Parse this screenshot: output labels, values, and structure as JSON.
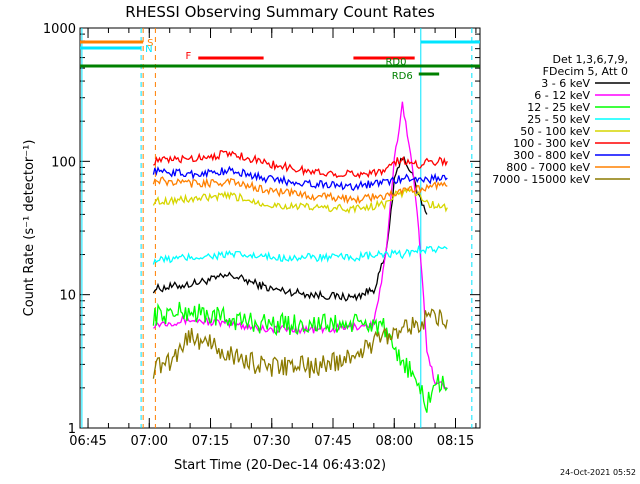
{
  "chart_data": {
    "type": "line",
    "title": "RHESSI Observing Summary Count Rates",
    "xlabel": "Start Time (20-Dec-14 06:43:02)",
    "ylabel": "Count Rate (s⁻¹ detector⁻¹)",
    "yscale": "log",
    "ylim": [
      1,
      1000
    ],
    "yticks": [
      {
        "value": 1,
        "label": "1"
      },
      {
        "value": 10,
        "label": "10"
      },
      {
        "value": 100,
        "label": "100"
      },
      {
        "value": 1000,
        "label": "1000"
      }
    ],
    "xlim": [
      "06:43:02",
      "08:21:00"
    ],
    "xticks": [
      "06:45",
      "07:00",
      "07:15",
      "07:30",
      "07:45",
      "08:00",
      "08:15"
    ],
    "legend_header": [
      "Det 1,3,6,7,9,",
      "FDecim 5, Att 0"
    ],
    "legend_position": "right",
    "timestamp": "24-Oct-2021 05:52",
    "colors": {
      "s1": "#000000",
      "s2": "#ff00ff",
      "s3": "#00ff00",
      "s4": "#00ffff",
      "s5": "#d6d600",
      "s6": "#ff0000",
      "s7": "#0000ff",
      "s8": "#ff8000",
      "s9": "#8b7a00",
      "saa": "#ff8000",
      "night": "#00e5ff",
      "flare": "#ff0000",
      "decim": "#008000"
    },
    "legend": [
      {
        "key": "s1",
        "label": "3 - 6 keV"
      },
      {
        "key": "s2",
        "label": "6 - 12 keV"
      },
      {
        "key": "s3",
        "label": "12 - 25 keV"
      },
      {
        "key": "s4",
        "label": "25 - 50 keV"
      },
      {
        "key": "s5",
        "label": "50 - 100 keV"
      },
      {
        "key": "s6",
        "label": "100 - 300 keV"
      },
      {
        "key": "s7",
        "label": "300 - 800 keV"
      },
      {
        "key": "s8",
        "label": "800 - 7000 keV"
      },
      {
        "key": "s9",
        "label": "7000 - 15000 keV"
      }
    ],
    "series": [
      {
        "key": "s1",
        "x": [
          "07:01",
          "07:10",
          "07:20",
          "07:30",
          "07:40",
          "07:50",
          "07:55",
          "07:58",
          "08:00",
          "08:02",
          "08:04",
          "08:06",
          "08:08"
        ],
        "y": [
          11,
          12,
          14,
          11,
          10,
          9.5,
          11,
          20,
          70,
          110,
          85,
          55,
          40
        ]
      },
      {
        "key": "s2",
        "x": [
          "07:01",
          "07:10",
          "07:20",
          "07:30",
          "07:45",
          "07:55",
          "07:58",
          "08:00",
          "08:02",
          "08:04",
          "08:06",
          "08:08",
          "08:10",
          "08:13"
        ],
        "y": [
          6,
          6.5,
          6,
          5.5,
          5.5,
          6,
          20,
          100,
          270,
          120,
          30,
          4,
          2.2,
          2
        ]
      },
      {
        "key": "s3",
        "x": [
          "07:01",
          "07:10",
          "07:20",
          "07:30",
          "07:40",
          "07:50",
          "07:57",
          "08:00",
          "08:03",
          "08:06",
          "08:08",
          "08:10",
          "08:13"
        ],
        "y": [
          7,
          7.5,
          6.5,
          6,
          6,
          6,
          6,
          3.5,
          3,
          2,
          1.5,
          2.2,
          2
        ]
      },
      {
        "key": "s4",
        "x": [
          "07:01",
          "07:10",
          "07:20",
          "07:30",
          "07:40",
          "07:50",
          "07:58",
          "08:02",
          "08:06",
          "08:08",
          "08:13"
        ],
        "y": [
          18,
          19,
          20,
          19,
          19,
          19,
          20,
          20,
          22,
          22,
          22
        ]
      },
      {
        "key": "s5",
        "x": [
          "07:01",
          "07:10",
          "07:20",
          "07:30",
          "07:40",
          "07:50",
          "07:58",
          "08:00",
          "08:03",
          "08:06",
          "08:08",
          "08:13"
        ],
        "y": [
          50,
          52,
          55,
          47,
          45,
          44,
          48,
          55,
          60,
          58,
          48,
          45
        ]
      },
      {
        "key": "s6",
        "x": [
          "07:01",
          "07:10",
          "07:20",
          "07:30",
          "07:40",
          "07:50",
          "07:58",
          "08:00",
          "08:03",
          "08:06",
          "08:08",
          "08:10",
          "08:13"
        ],
        "y": [
          100,
          105,
          115,
          95,
          83,
          80,
          85,
          100,
          100,
          95,
          100,
          100,
          100
        ]
      },
      {
        "key": "s7",
        "x": [
          "07:01",
          "07:10",
          "07:20",
          "07:30",
          "07:40",
          "07:50",
          "07:58",
          "08:00",
          "08:03",
          "08:06",
          "08:08",
          "08:10",
          "08:13"
        ],
        "y": [
          85,
          80,
          85,
          73,
          68,
          65,
          70,
          72,
          75,
          75,
          72,
          75,
          75
        ]
      },
      {
        "key": "s8",
        "x": [
          "07:01",
          "07:10",
          "07:20",
          "07:30",
          "07:40",
          "07:50",
          "07:58",
          "08:00",
          "08:03",
          "08:06",
          "08:08",
          "08:10",
          "08:13"
        ],
        "y": [
          72,
          68,
          70,
          60,
          55,
          52,
          55,
          58,
          60,
          62,
          65,
          67,
          65
        ]
      },
      {
        "key": "s9",
        "x": [
          "07:01",
          "07:05",
          "07:10",
          "07:20",
          "07:30",
          "07:35",
          "07:40",
          "07:50",
          "07:58",
          "08:03",
          "08:06",
          "08:08",
          "08:10",
          "08:13"
        ],
        "y": [
          2.8,
          3.2,
          5,
          3.5,
          2.8,
          3,
          2.8,
          3.5,
          5,
          6,
          6,
          6.5,
          6.5,
          6.5
        ]
      }
    ],
    "flag_bars": [
      {
        "key": "saa",
        "label": "S",
        "start": "06:43:02",
        "end": "06:58:30",
        "level": "top"
      },
      {
        "key": "night",
        "label": "N",
        "start": "06:43:02",
        "end": "06:58:00",
        "level": "top"
      },
      {
        "key": "night",
        "label": "",
        "start": "08:06:30",
        "end": "08:21:00",
        "level": "top"
      },
      {
        "key": "flare",
        "label": "F",
        "start": "07:12:00",
        "end": "07:28:00",
        "level": "mid"
      },
      {
        "key": "flare",
        "label": "",
        "start": "07:50:00",
        "end": "08:05:00",
        "level": "mid"
      },
      {
        "key": "decim",
        "label": "RD0",
        "start": "06:43:02",
        "end": "08:21:00",
        "level": "low"
      },
      {
        "key": "decim",
        "label": "RD6",
        "start": "08:06:00",
        "end": "08:11:00",
        "level": "lower"
      }
    ],
    "vlines": [
      {
        "key": "night",
        "x": "06:43:30",
        "style": "solid"
      },
      {
        "key": "night",
        "x": "06:58:00",
        "style": "dashed"
      },
      {
        "key": "saa",
        "x": "06:58:30",
        "style": "dashed"
      },
      {
        "key": "saa",
        "x": "07:01:30",
        "style": "dashed"
      },
      {
        "key": "night",
        "x": "08:06:30",
        "style": "solid"
      },
      {
        "key": "night",
        "x": "08:19:00",
        "style": "dashed"
      }
    ]
  }
}
